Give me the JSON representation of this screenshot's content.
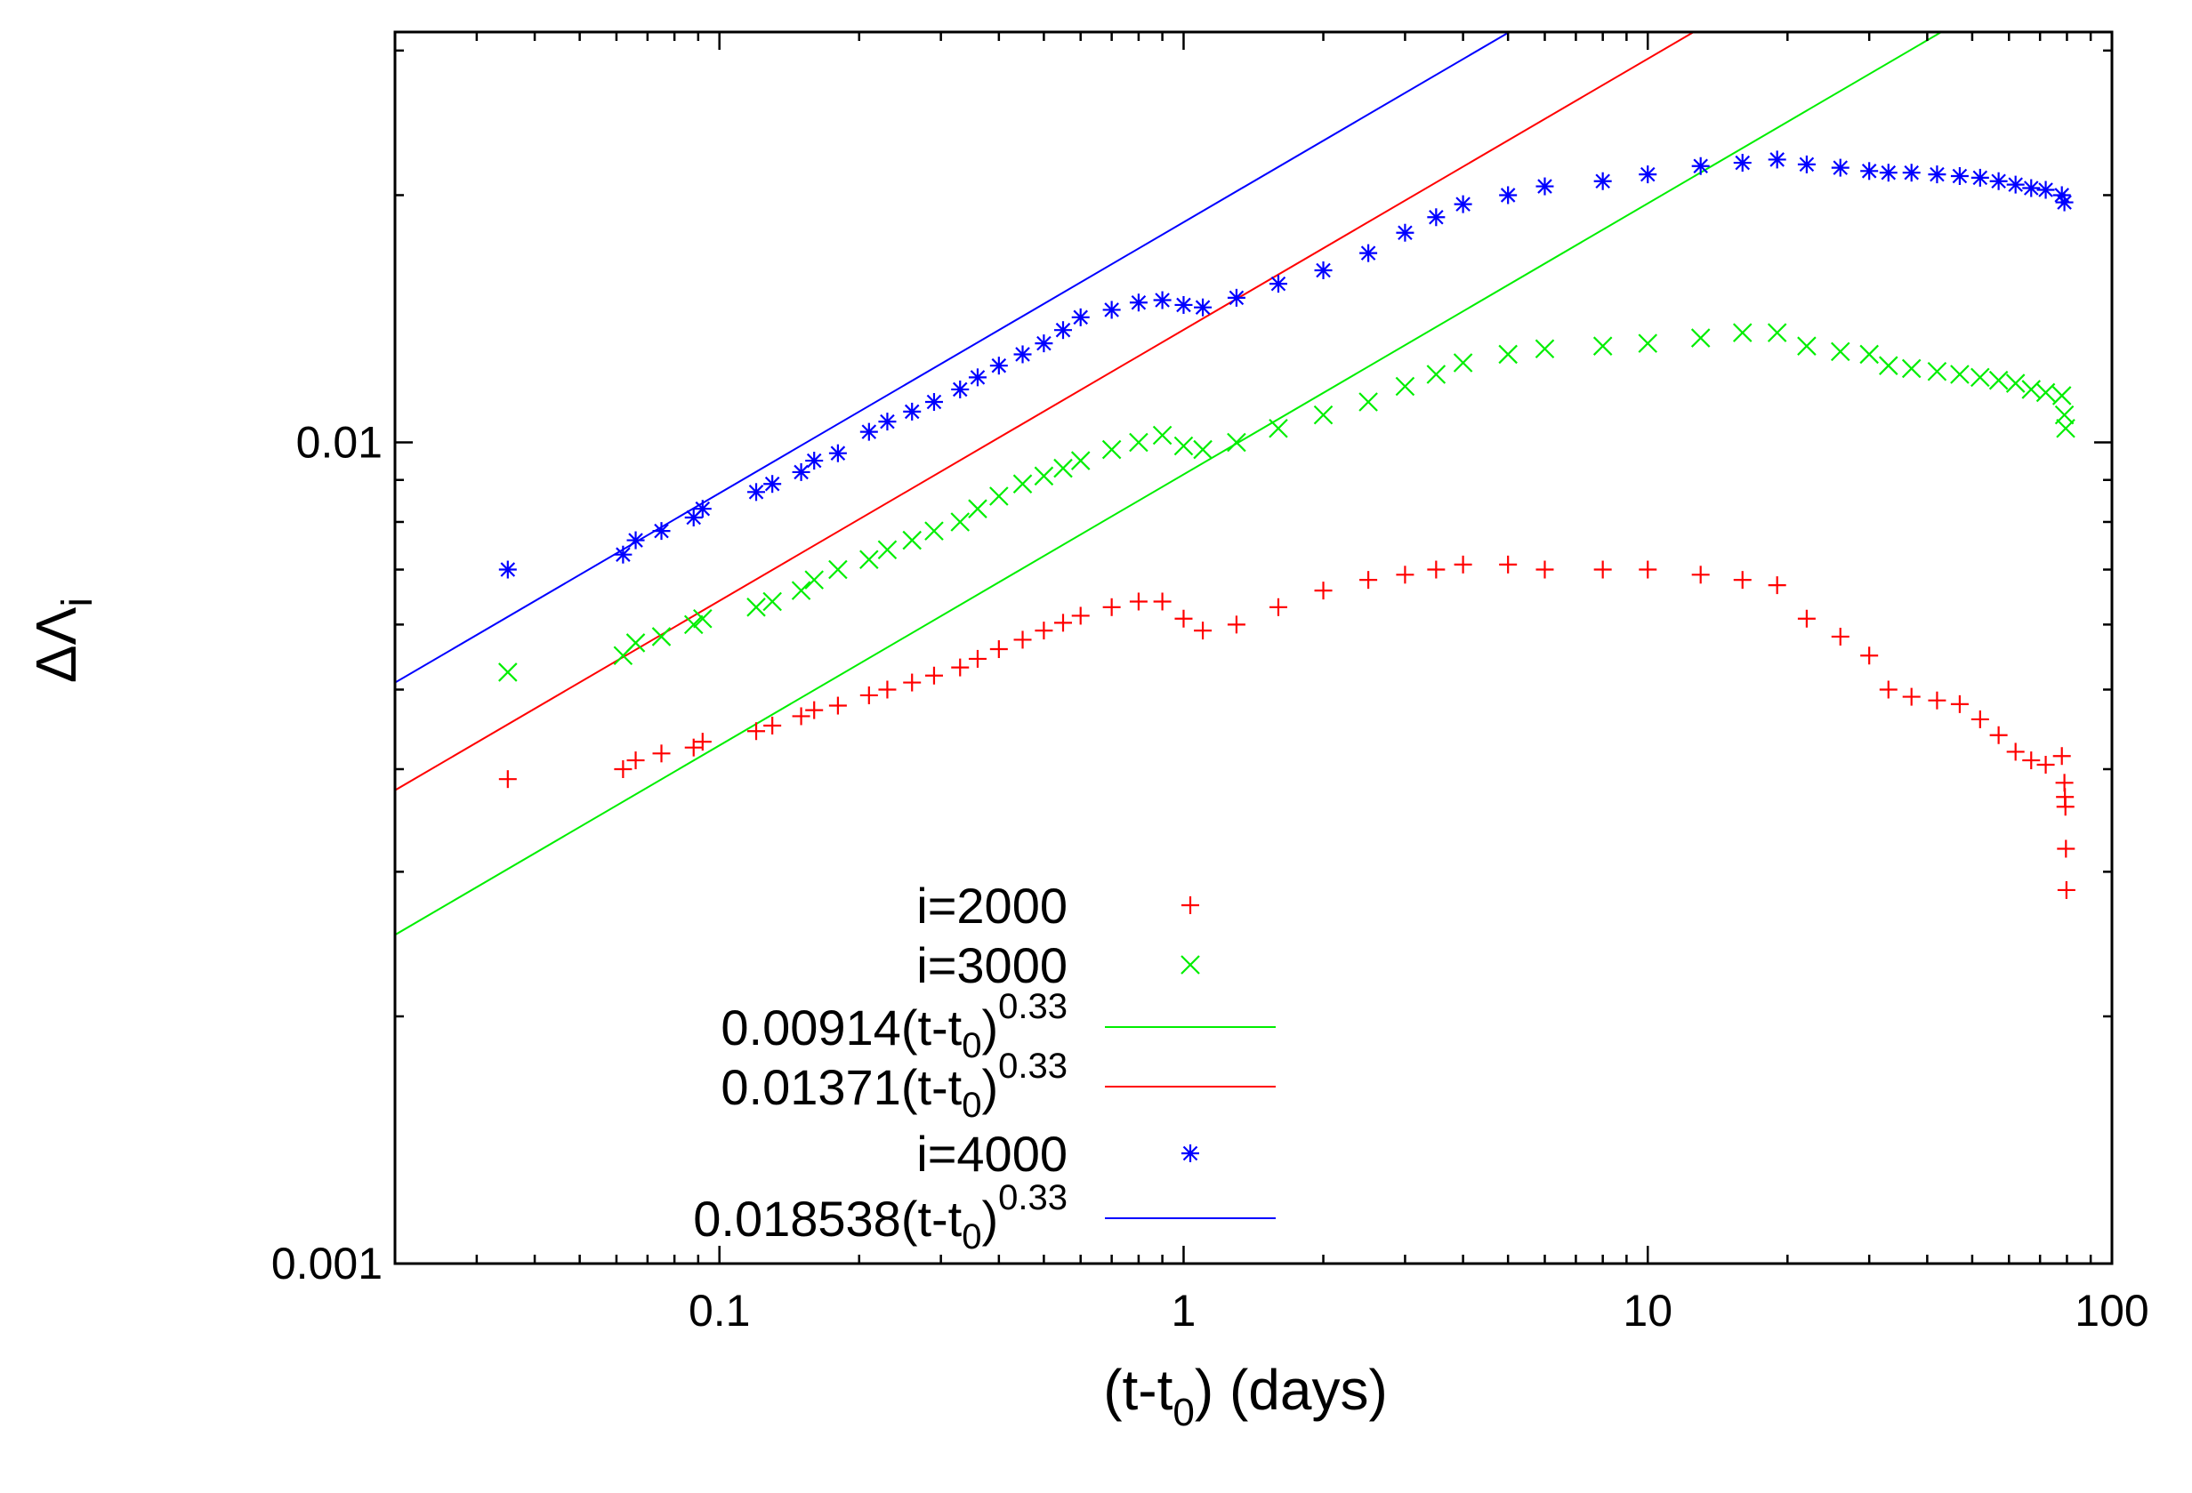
{
  "chart_data": {
    "type": "scatter",
    "scale": {
      "x": "log",
      "y": "log"
    },
    "xlim": [
      0.02,
      100
    ],
    "ylim": [
      0.001,
      0.0316
    ],
    "xticks": [
      {
        "value": 0.1,
        "label": "0.1"
      },
      {
        "value": 1,
        "label": "1"
      },
      {
        "value": 10,
        "label": "10"
      },
      {
        "value": 100,
        "label": "100"
      }
    ],
    "yticks": [
      {
        "value": 0.001,
        "label": "0.001"
      },
      {
        "value": 0.01,
        "label": "0.01"
      }
    ],
    "xlabel": {
      "main": "(t-t",
      "sub": "0",
      "tail": ") (days)"
    },
    "ylabel": {
      "main": "ΔΛ",
      "sub": "i"
    },
    "legend_position": "bottom-center",
    "series": [
      {
        "name": "i=2000",
        "kind": "points",
        "marker": "plus",
        "color": "#ff0000",
        "points": [
          [
            0.035,
            0.00389
          ],
          [
            0.062,
            0.004
          ],
          [
            0.066,
            0.0041
          ],
          [
            0.075,
            0.00418
          ],
          [
            0.088,
            0.00425
          ],
          [
            0.092,
            0.00432
          ],
          [
            0.12,
            0.00445
          ],
          [
            0.13,
            0.00452
          ],
          [
            0.15,
            0.00464
          ],
          [
            0.16,
            0.00472
          ],
          [
            0.18,
            0.00478
          ],
          [
            0.21,
            0.00492
          ],
          [
            0.23,
            0.005
          ],
          [
            0.26,
            0.0051
          ],
          [
            0.29,
            0.0052
          ],
          [
            0.33,
            0.00532
          ],
          [
            0.36,
            0.00545
          ],
          [
            0.4,
            0.0056
          ],
          [
            0.45,
            0.00575
          ],
          [
            0.5,
            0.0059
          ],
          [
            0.55,
            0.00603
          ],
          [
            0.6,
            0.00615
          ],
          [
            0.7,
            0.0063
          ],
          [
            0.8,
            0.0064
          ],
          [
            0.9,
            0.0064
          ],
          [
            1.0,
            0.0061
          ],
          [
            1.1,
            0.0059
          ],
          [
            1.3,
            0.006
          ],
          [
            1.6,
            0.0063
          ],
          [
            2.0,
            0.0066
          ],
          [
            2.5,
            0.0068
          ],
          [
            3.0,
            0.0069
          ],
          [
            3.5,
            0.007
          ],
          [
            4.0,
            0.0071
          ],
          [
            5.0,
            0.0071
          ],
          [
            6.0,
            0.007
          ],
          [
            8.0,
            0.007
          ],
          [
            10,
            0.007
          ],
          [
            13,
            0.0069
          ],
          [
            16,
            0.0068
          ],
          [
            19,
            0.0067
          ],
          [
            22,
            0.0061
          ],
          [
            26,
            0.0058
          ],
          [
            30,
            0.0055
          ],
          [
            33,
            0.005
          ],
          [
            37,
            0.0049
          ],
          [
            42,
            0.00485
          ],
          [
            47,
            0.0048
          ],
          [
            52,
            0.0046
          ],
          [
            57,
            0.0044
          ],
          [
            62,
            0.0042
          ],
          [
            67,
            0.0041
          ],
          [
            72,
            0.00405
          ],
          [
            78,
            0.00415
          ],
          [
            79,
            0.00385
          ],
          [
            79.2,
            0.0037
          ],
          [
            79.4,
            0.0036
          ],
          [
            79.6,
            0.0032
          ],
          [
            79.8,
            0.00285
          ]
        ]
      },
      {
        "name": "i=3000",
        "kind": "points",
        "marker": "cross",
        "color": "#00ee00",
        "points": [
          [
            0.035,
            0.00525
          ],
          [
            0.062,
            0.0055
          ],
          [
            0.066,
            0.0057
          ],
          [
            0.075,
            0.0058
          ],
          [
            0.088,
            0.006
          ],
          [
            0.092,
            0.0061
          ],
          [
            0.12,
            0.0063
          ],
          [
            0.13,
            0.0064
          ],
          [
            0.15,
            0.0066
          ],
          [
            0.16,
            0.0068
          ],
          [
            0.18,
            0.007
          ],
          [
            0.21,
            0.0072
          ],
          [
            0.23,
            0.0074
          ],
          [
            0.26,
            0.0076
          ],
          [
            0.29,
            0.0078
          ],
          [
            0.33,
            0.008
          ],
          [
            0.36,
            0.0083
          ],
          [
            0.4,
            0.0086
          ],
          [
            0.45,
            0.0089
          ],
          [
            0.5,
            0.0091
          ],
          [
            0.55,
            0.0093
          ],
          [
            0.6,
            0.0095
          ],
          [
            0.7,
            0.0098
          ],
          [
            0.8,
            0.01
          ],
          [
            0.9,
            0.0102
          ],
          [
            1.0,
            0.0099
          ],
          [
            1.1,
            0.0098
          ],
          [
            1.3,
            0.01
          ],
          [
            1.6,
            0.0104
          ],
          [
            2.0,
            0.0108
          ],
          [
            2.5,
            0.0112
          ],
          [
            3.0,
            0.0117
          ],
          [
            3.5,
            0.0121
          ],
          [
            4.0,
            0.0125
          ],
          [
            5.0,
            0.0128
          ],
          [
            6.0,
            0.013
          ],
          [
            8.0,
            0.0131
          ],
          [
            10,
            0.0132
          ],
          [
            13,
            0.0134
          ],
          [
            16,
            0.0136
          ],
          [
            19,
            0.0136
          ],
          [
            22,
            0.0131
          ],
          [
            26,
            0.0129
          ],
          [
            30,
            0.0128
          ],
          [
            33,
            0.0124
          ],
          [
            37,
            0.0123
          ],
          [
            42,
            0.0122
          ],
          [
            47,
            0.0121
          ],
          [
            52,
            0.012
          ],
          [
            57,
            0.0119
          ],
          [
            62,
            0.0118
          ],
          [
            67,
            0.0116
          ],
          [
            72,
            0.0115
          ],
          [
            78,
            0.0114
          ],
          [
            79,
            0.0108
          ],
          [
            79.5,
            0.0104
          ]
        ]
      },
      {
        "name": "i=4000",
        "kind": "points",
        "marker": "star",
        "color": "#0000ff",
        "points": [
          [
            0.035,
            0.007
          ],
          [
            0.062,
            0.0073
          ],
          [
            0.066,
            0.0076
          ],
          [
            0.075,
            0.0078
          ],
          [
            0.088,
            0.0081
          ],
          [
            0.092,
            0.0083
          ],
          [
            0.12,
            0.0087
          ],
          [
            0.13,
            0.0089
          ],
          [
            0.15,
            0.0092
          ],
          [
            0.16,
            0.0095
          ],
          [
            0.18,
            0.0097
          ],
          [
            0.21,
            0.0103
          ],
          [
            0.23,
            0.0106
          ],
          [
            0.26,
            0.0109
          ],
          [
            0.29,
            0.0112
          ],
          [
            0.33,
            0.0116
          ],
          [
            0.36,
            0.012
          ],
          [
            0.4,
            0.0124
          ],
          [
            0.45,
            0.0128
          ],
          [
            0.5,
            0.0132
          ],
          [
            0.55,
            0.0137
          ],
          [
            0.6,
            0.0142
          ],
          [
            0.7,
            0.0145
          ],
          [
            0.8,
            0.0148
          ],
          [
            0.9,
            0.0149
          ],
          [
            1.0,
            0.0147
          ],
          [
            1.1,
            0.0146
          ],
          [
            1.3,
            0.015
          ],
          [
            1.6,
            0.0156
          ],
          [
            2.0,
            0.0162
          ],
          [
            2.5,
            0.017
          ],
          [
            3.0,
            0.018
          ],
          [
            3.5,
            0.0188
          ],
          [
            4.0,
            0.0195
          ],
          [
            5.0,
            0.02
          ],
          [
            6.0,
            0.0205
          ],
          [
            8.0,
            0.0208
          ],
          [
            10,
            0.0212
          ],
          [
            13,
            0.0217
          ],
          [
            16,
            0.0219
          ],
          [
            19,
            0.0221
          ],
          [
            22,
            0.0218
          ],
          [
            26,
            0.0216
          ],
          [
            30,
            0.0214
          ],
          [
            33,
            0.0213
          ],
          [
            37,
            0.0213
          ],
          [
            42,
            0.0212
          ],
          [
            47,
            0.0211
          ],
          [
            52,
            0.021
          ],
          [
            57,
            0.0208
          ],
          [
            62,
            0.0206
          ],
          [
            67,
            0.0204
          ],
          [
            72,
            0.0203
          ],
          [
            78,
            0.02
          ],
          [
            79,
            0.0196
          ]
        ]
      },
      {
        "name": "0.00914(t-t0)^0.33",
        "kind": "fit",
        "coef": 0.00914,
        "exp": 0.33,
        "color": "#00ee00"
      },
      {
        "name": "0.01371(t-t0)^0.33",
        "kind": "fit",
        "coef": 0.01371,
        "exp": 0.33,
        "color": "#ff0000"
      },
      {
        "name": "0.018538(t-t0)^0.33",
        "kind": "fit",
        "coef": 0.018538,
        "exp": 0.33,
        "color": "#0000ff"
      }
    ],
    "legend": [
      {
        "text": "i=2000",
        "series": 0
      },
      {
        "text": "i=3000",
        "series": 1
      },
      {
        "base": "0.00914(t-t",
        "sub": "0",
        "tail": ")",
        "sup": "0.33",
        "series": 3
      },
      {
        "base": "0.01371(t-t",
        "sub": "0",
        "tail": ")",
        "sup": "0.33",
        "series": 4
      },
      {
        "text": "i=4000",
        "series": 2
      },
      {
        "base": "0.018538(t-t",
        "sub": "0",
        "tail": ")",
        "sup": "0.33",
        "series": 5
      }
    ]
  }
}
